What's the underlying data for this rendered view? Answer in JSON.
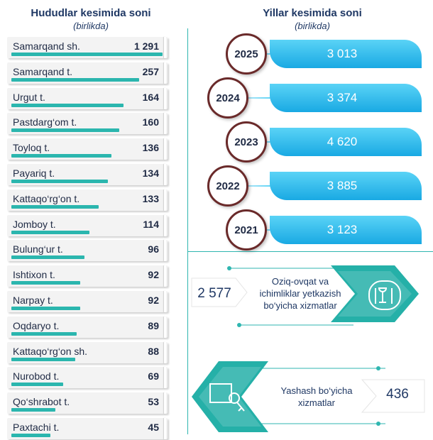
{
  "left": {
    "title": "Hududlar kesimida soni",
    "subtitle": "(birlikda)"
  },
  "right": {
    "title": "Yillar kesimida soni",
    "subtitle": "(birlikda)"
  },
  "chart_data": [
    {
      "type": "bar",
      "title": "Hududlar kesimida soni",
      "subtitle": "(birlikda)",
      "categories": [
        "Samarqand sh.",
        "Samarqand t.",
        "Urgut t.",
        "Pastdarg‘om t.",
        "Toyloq t.",
        "Payariq t.",
        "Kattaqo‘rg‘on t.",
        "Jomboy t.",
        "Bulung‘ur t.",
        "Ishtixon t.",
        "Narpay t.",
        "Oqdaryo t.",
        "Kattaqo‘rg‘on sh.",
        "Nurobod t.",
        "Qo‘shrabot t.",
        "Paxtachi t."
      ],
      "values": [
        1291,
        257,
        164,
        160,
        136,
        134,
        133,
        114,
        96,
        92,
        92,
        89,
        88,
        69,
        53,
        45
      ],
      "value_labels": [
        "1 291",
        "257",
        "164",
        "160",
        "136",
        "134",
        "133",
        "114",
        "96",
        "92",
        "92",
        "89",
        "88",
        "69",
        "53",
        "45"
      ],
      "bar_fill_fraction": [
        0.97,
        0.82,
        0.72,
        0.69,
        0.64,
        0.62,
        0.56,
        0.5,
        0.47,
        0.44,
        0.44,
        0.42,
        0.41,
        0.33,
        0.28,
        0.25
      ]
    },
    {
      "type": "bar",
      "title": "Yillar kesimida soni",
      "subtitle": "(birlikda)",
      "categories": [
        "2025",
        "2024",
        "2023",
        "2022",
        "2021"
      ],
      "values": [
        3013,
        3374,
        4620,
        3885,
        3123
      ],
      "value_labels": [
        "3 013",
        "3 374",
        "4 620",
        "3 885",
        "3 123"
      ]
    }
  ],
  "services": [
    {
      "text_lines": [
        "Oziq-ovqat va",
        "ichimliklar yetkazish",
        "bo‘yicha xizmatlar"
      ],
      "value": "2 577",
      "icon": "food-drink-icon"
    },
    {
      "text_lines": [
        "Yashash bo‘yicha",
        "xizmatlar"
      ],
      "value": "436",
      "icon": "house-key-icon"
    }
  ],
  "colors": {
    "teal": "#2bb6ae",
    "blue": "#19a9e3",
    "navy": "#1f3864"
  }
}
